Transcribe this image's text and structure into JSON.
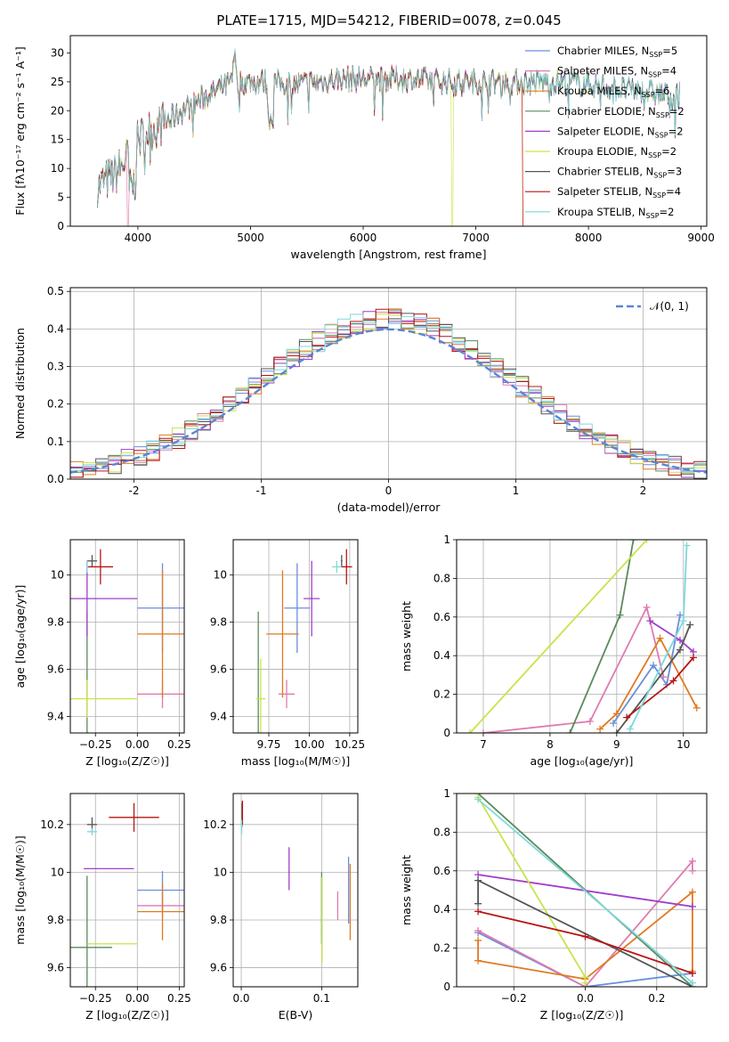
{
  "title": "PLATE=1715, MJD=54212, FIBERID=0078, z=0.045",
  "colors": {
    "c0": "#6a8edc",
    "c1": "#e07ab0",
    "c2": "#e07a22",
    "c3": "#5b8a5b",
    "c4": "#a03ec8",
    "c5": "#c8e44a",
    "c6": "#555555",
    "c7": "#b81414",
    "c8": "#7ed8dc"
  },
  "chart_data": [
    {
      "type": "line",
      "name": "spectrum",
      "xlabel": "wavelength [Angstrom, rest frame]",
      "ylabel": "Flux [fλ10⁻¹⁷ erg cm⁻² s⁻¹ A⁻¹]",
      "xlim": [
        3400,
        9050
      ],
      "ylim": [
        0,
        33
      ],
      "xticks": [
        4000,
        5000,
        6000,
        7000,
        8000,
        9000
      ],
      "yticks": [
        0,
        5,
        10,
        15,
        20,
        25,
        30
      ],
      "legend": "top-right",
      "series": [
        {
          "name": "Chabrier MILES, N",
          "sub": "SSP",
          "suffix": "=5",
          "color": "c0"
        },
        {
          "name": "Salpeter MILES, N",
          "sub": "SSP",
          "suffix": "=4",
          "color": "c1"
        },
        {
          "name": "Kroupa MILES, N",
          "sub": "SSP",
          "suffix": "=6",
          "color": "c2"
        },
        {
          "name": "Chabrier ELODIE, N",
          "sub": "SSP",
          "suffix": "=2",
          "color": "c3"
        },
        {
          "name": "Salpeter ELODIE, N",
          "sub": "SSP",
          "suffix": "=2",
          "color": "c4"
        },
        {
          "name": "Kroupa ELODIE, N",
          "sub": "SSP",
          "suffix": "=2",
          "color": "c5"
        },
        {
          "name": "Chabrier STELIB, N",
          "sub": "SSP",
          "suffix": "=3",
          "color": "c6"
        },
        {
          "name": "Salpeter STELIB, N",
          "sub": "SSP",
          "suffix": "=4",
          "color": "c7"
        },
        {
          "name": "Kroupa STELIB, N",
          "sub": "SSP",
          "suffix": "=2",
          "color": "c8"
        }
      ],
      "continuum": {
        "x": [
          3650,
          3800,
          3950,
          4050,
          4200,
          4400,
          4600,
          4800,
          5000,
          5200,
          5400,
          5600,
          5800,
          6000,
          6200,
          6400,
          6600,
          6800,
          7000,
          7200,
          7400,
          7600,
          7800,
          8000,
          8200,
          8400,
          8600,
          8800
        ],
        "y": [
          7,
          9,
          13,
          16,
          17.5,
          20,
          22.5,
          24.5,
          25,
          25,
          24.5,
          25,
          25.5,
          25.5,
          25.5,
          25.5,
          25.2,
          25,
          25,
          25,
          25,
          25,
          25,
          24.5,
          24,
          23.5,
          23,
          22.5
        ]
      },
      "cutoffs": [
        {
          "color": "c5",
          "x": 6790
        },
        {
          "color": "c7",
          "x": 7420
        },
        {
          "color": "c2",
          "x": 7420
        },
        {
          "color": "c1",
          "x": 3910
        },
        {
          "color": "c5",
          "x": 3935
        }
      ]
    },
    {
      "type": "step",
      "name": "residuals",
      "xlabel": "(data-model)/error",
      "ylabel": "Normed distribution",
      "xlim": [
        -2.5,
        2.5
      ],
      "ylim": [
        0,
        0.51
      ],
      "xticks": [
        -2,
        -1,
        0,
        1,
        2
      ],
      "yticks": [
        0.0,
        0.1,
        0.2,
        0.3,
        0.4,
        0.5
      ],
      "legend": "top-right",
      "legend_label": "𝒩(0, 1)"
    },
    {
      "type": "errorbar",
      "name": "age-vs-Z",
      "xlabel": "Z [log₁₀(Z/Z☉)]",
      "ylabel": "age  [log₁₀(age/yr)]",
      "xlim": [
        -0.4,
        0.28
      ],
      "ylim": [
        9.33,
        10.15
      ],
      "xticks": [
        -0.25,
        0.0,
        0.25
      ],
      "xticklabels": [
        "−0.25",
        "0.00",
        "0.25"
      ],
      "yticks": [
        9.4,
        9.6,
        9.8,
        10.0
      ],
      "points": [
        {
          "c": "c0",
          "x": 0.15,
          "y": 9.86,
          "xerr": 0.15,
          "yerr": 0.19
        },
        {
          "c": "c1",
          "x": 0.15,
          "y": 9.495,
          "xerr": 0.15,
          "yerr": 0.06
        },
        {
          "c": "c2",
          "x": 0.15,
          "y": 9.75,
          "xerr": 0.15,
          "yerr": 0.27
        },
        {
          "c": "c3",
          "x": -0.3,
          "y": 9.475,
          "xerr": 0.0,
          "yerr": 0.37
        },
        {
          "c": "c4",
          "x": -0.3,
          "y": 9.9,
          "xerr": 0.3,
          "yerr": 0.16
        },
        {
          "c": "c5",
          "x": -0.3,
          "y": 9.475,
          "xerr": 0.3,
          "yerr": 0.08
        },
        {
          "c": "c6",
          "x": -0.27,
          "y": 10.06,
          "xerr": 0.03,
          "yerr": 0.025
        },
        {
          "c": "c7",
          "x": -0.22,
          "y": 10.035,
          "xerr": 0.075,
          "yerr": 0.075
        },
        {
          "c": "c8",
          "x": -0.3,
          "y": 10.035,
          "xerr": 0.0,
          "yerr": 0.025
        }
      ]
    },
    {
      "type": "errorbar",
      "name": "age-vs-mass",
      "xlabel": "mass [log₁₀(M/M☉)]",
      "ylabel": "",
      "xlim": [
        9.53,
        10.3
      ],
      "ylim": [
        9.33,
        10.15
      ],
      "xticks": [
        9.75,
        10.0,
        10.25
      ],
      "xticklabels": [
        "9.75",
        "10.00",
        "10.25"
      ],
      "yticks": [
        9.4,
        9.6,
        9.8,
        10.0
      ],
      "points": [
        {
          "c": "c0",
          "x": 9.925,
          "y": 9.86,
          "xerr": 0.08,
          "yerr": 0.19
        },
        {
          "c": "c1",
          "x": 9.86,
          "y": 9.495,
          "xerr": 0.05,
          "yerr": 0.06
        },
        {
          "c": "c2",
          "x": 9.835,
          "y": 9.75,
          "xerr": 0.1,
          "yerr": 0.27
        },
        {
          "c": "c3",
          "x": 9.685,
          "y": 9.475,
          "xerr": 0.0,
          "yerr": 0.37
        },
        {
          "c": "c4",
          "x": 10.015,
          "y": 9.9,
          "xerr": 0.05,
          "yerr": 0.16
        },
        {
          "c": "c5",
          "x": 9.7,
          "y": 9.475,
          "xerr": 0.03,
          "yerr": 0.17
        },
        {
          "c": "c6",
          "x": 10.2,
          "y": 10.06,
          "xerr": 0.005,
          "yerr": 0.025
        },
        {
          "c": "c7",
          "x": 10.23,
          "y": 10.035,
          "xerr": 0.035,
          "yerr": 0.075
        },
        {
          "c": "c8",
          "x": 10.17,
          "y": 10.035,
          "xerr": 0.03,
          "yerr": 0.025
        }
      ]
    },
    {
      "type": "line",
      "name": "mass-weight-vs-age",
      "xlabel": "age  [log₁₀(age/yr)]",
      "ylabel": "mass weight",
      "xlim": [
        6.6,
        10.35
      ],
      "ylim": [
        0,
        1.0
      ],
      "xticks": [
        7,
        8,
        9,
        10
      ],
      "yticks": [
        0.0,
        0.2,
        0.4,
        0.6,
        0.8,
        1.0
      ],
      "series": [
        {
          "c": "c0",
          "x": [
            8.95,
            9.55,
            9.75,
            9.95
          ],
          "y": [
            0.05,
            0.35,
            0.25,
            0.61
          ]
        },
        {
          "c": "c1",
          "x": [
            7.0,
            8.6,
            9.45,
            9.7
          ],
          "y": [
            0.0,
            0.06,
            0.65,
            0.29
          ]
        },
        {
          "c": "c2",
          "x": [
            8.75,
            9.0,
            9.65,
            10.2
          ],
          "y": [
            0.02,
            0.1,
            0.49,
            0.13
          ]
        },
        {
          "c": "c3",
          "x": [
            8.3,
            9.05,
            9.25
          ],
          "y": [
            0.0,
            0.61,
            1.0
          ]
        },
        {
          "c": "c4",
          "x": [
            9.5,
            9.95,
            10.15
          ],
          "y": [
            0.58,
            0.48,
            0.42
          ]
        },
        {
          "c": "c5",
          "x": [
            6.8,
            9.45
          ],
          "y": [
            0.0,
            1.0
          ]
        },
        {
          "c": "c6",
          "x": [
            9.0,
            9.95,
            10.1
          ],
          "y": [
            0.0,
            0.43,
            0.56
          ]
        },
        {
          "c": "c7",
          "x": [
            9.15,
            9.85,
            10.15
          ],
          "y": [
            0.08,
            0.27,
            0.39
          ]
        },
        {
          "c": "c8",
          "x": [
            9.2,
            10.0,
            10.05
          ],
          "y": [
            0.02,
            0.58,
            0.97
          ]
        }
      ]
    },
    {
      "type": "errorbar",
      "name": "mass-vs-Z",
      "xlabel": "Z [log₁₀(Z/Z☉)]",
      "ylabel": "mass [log₁₀(M/M☉)]",
      "xlim": [
        -0.4,
        0.28
      ],
      "ylim": [
        9.52,
        10.33
      ],
      "xticks": [
        -0.25,
        0.0,
        0.25
      ],
      "xticklabels": [
        "−0.25",
        "0.00",
        "0.25"
      ],
      "yticks": [
        9.6,
        9.8,
        10.0,
        10.2
      ],
      "points": [
        {
          "c": "c0",
          "x": 0.15,
          "y": 9.925,
          "xerr": 0.15,
          "yerr": 0.08
        },
        {
          "c": "c1",
          "x": 0.15,
          "y": 9.86,
          "xerr": 0.15,
          "yerr": 0.05
        },
        {
          "c": "c2",
          "x": 0.15,
          "y": 9.835,
          "xerr": 0.15,
          "yerr": 0.12
        },
        {
          "c": "c3",
          "x": -0.3,
          "y": 9.685,
          "xerr": 0.15,
          "yerr": 0.3
        },
        {
          "c": "c4",
          "x": -0.17,
          "y": 10.015,
          "xerr": 0.15,
          "yerr": 0.0
        },
        {
          "c": "c5",
          "x": -0.15,
          "y": 9.7,
          "xerr": 0.15,
          "yerr": 0.0
        },
        {
          "c": "c6",
          "x": -0.27,
          "y": 10.2,
          "xerr": 0.03,
          "yerr": 0.03
        },
        {
          "c": "c7",
          "x": -0.02,
          "y": 10.23,
          "xerr": 0.15,
          "yerr": 0.06
        },
        {
          "c": "c8",
          "x": -0.27,
          "y": 10.17,
          "xerr": 0.03,
          "yerr": 0.015
        }
      ]
    },
    {
      "type": "errorbar",
      "name": "mass-vs-EBV",
      "xlabel": "E(B-V)",
      "ylabel": "",
      "xlim": [
        -0.01,
        0.145
      ],
      "ylim": [
        9.52,
        10.33
      ],
      "xticks": [
        0.0,
        0.1
      ],
      "xticklabels": [
        "0.0",
        "0.1"
      ],
      "yticks": [
        9.6,
        9.8,
        10.0,
        10.2
      ],
      "points": [
        {
          "c": "c0",
          "x": 0.1335,
          "y": 9.925,
          "xerr": 0.0,
          "yerr": 0.14
        },
        {
          "c": "c1",
          "x": 0.12,
          "y": 9.86,
          "xerr": 0.0,
          "yerr": 0.06
        },
        {
          "c": "c2",
          "x": 0.1355,
          "y": 9.875,
          "xerr": 0.0,
          "yerr": 0.16
        },
        {
          "c": "c3",
          "x": 0.1,
          "y": 9.85,
          "xerr": 0.0,
          "yerr": 0.15
        },
        {
          "c": "c4",
          "x": 0.0595,
          "y": 10.015,
          "xerr": 0.0,
          "yerr": 0.09
        },
        {
          "c": "c5",
          "x": 0.1005,
          "y": 9.8,
          "xerr": 0.0,
          "yerr": 0.18
        },
        {
          "c": "c6",
          "x": 0.001,
          "y": 10.24,
          "xerr": 0.0,
          "yerr": 0.05
        },
        {
          "c": "c7",
          "x": 0.0015,
          "y": 10.25,
          "xerr": 0.0,
          "yerr": 0.05
        },
        {
          "c": "c8",
          "x": 0.0005,
          "y": 10.19,
          "xerr": 0.0,
          "yerr": 0.03
        }
      ]
    },
    {
      "type": "line",
      "name": "mass-weight-vs-Z",
      "xlabel": "Z [log₁₀(Z/Z☉)]",
      "ylabel": "mass weight",
      "xlim": [
        -0.36,
        0.34
      ],
      "ylim": [
        0,
        1.0
      ],
      "xticks": [
        -0.2,
        0.0,
        0.2
      ],
      "xticklabels": [
        "−0.2",
        "0.0",
        "0.2"
      ],
      "yticks": [
        0.0,
        0.2,
        0.4,
        0.6,
        0.8,
        1.0
      ],
      "series": [
        {
          "c": "c0",
          "x": [
            -0.3,
            0.0,
            0.3
          ],
          "y": [
            0.28,
            0.0,
            0.07
          ]
        },
        {
          "c": "c1",
          "x": [
            -0.3,
            0.0,
            0.3,
            0.3
          ],
          "y": [
            0.29,
            0.0,
            0.65,
            0.6
          ]
        },
        {
          "c": "c2",
          "x": [
            -0.3,
            -0.3,
            0.0,
            0.3,
            0.3
          ],
          "y": [
            0.24,
            0.135,
            0.04,
            0.49,
            0.08
          ]
        },
        {
          "c": "c3",
          "x": [
            -0.3,
            0.3
          ],
          "y": [
            1.0,
            0.0
          ]
        },
        {
          "c": "c4",
          "x": [
            -0.3,
            0.3
          ],
          "y": [
            0.58,
            0.415
          ]
        },
        {
          "c": "c5",
          "x": [
            -0.3,
            0.0,
            0.0
          ],
          "y": [
            0.98,
            0.05,
            0.02
          ]
        },
        {
          "c": "c6",
          "x": [
            -0.3,
            -0.3,
            0.3
          ],
          "y": [
            0.43,
            0.55,
            0.0
          ]
        },
        {
          "c": "c7",
          "x": [
            -0.3,
            0.0,
            0.3
          ],
          "y": [
            0.39,
            0.26,
            0.07
          ]
        },
        {
          "c": "c8",
          "x": [
            -0.3,
            0.3
          ],
          "y": [
            0.97,
            0.02
          ]
        }
      ]
    }
  ]
}
